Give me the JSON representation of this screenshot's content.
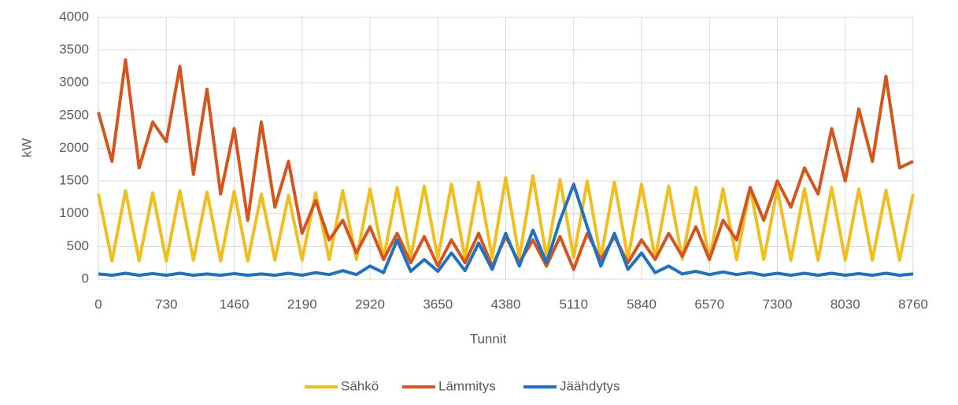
{
  "chart_data": {
    "type": "line",
    "x_label": "Tunnit",
    "y_label": "kW",
    "x": [
      0,
      146,
      292,
      438,
      584,
      730,
      876,
      1022,
      1168,
      1314,
      1460,
      1606,
      1752,
      1898,
      2044,
      2190,
      2336,
      2482,
      2628,
      2774,
      2920,
      3066,
      3212,
      3358,
      3504,
      3650,
      3796,
      3942,
      4088,
      4234,
      4380,
      4526,
      4672,
      4818,
      4964,
      5110,
      5256,
      5402,
      5548,
      5694,
      5840,
      5986,
      6132,
      6278,
      6424,
      6570,
      6716,
      6862,
      7008,
      7154,
      7300,
      7446,
      7592,
      7738,
      7884,
      8030,
      8176,
      8322,
      8468,
      8614,
      8760
    ],
    "series": [
      {
        "name": "Sähkö",
        "color": "#f0bf1d",
        "values": [
          1300,
          280,
          1350,
          280,
          1320,
          280,
          1350,
          290,
          1330,
          280,
          1340,
          280,
          1300,
          290,
          1280,
          290,
          1320,
          300,
          1350,
          300,
          1380,
          310,
          1400,
          320,
          1420,
          320,
          1450,
          320,
          1480,
          330,
          1550,
          330,
          1580,
          330,
          1520,
          330,
          1500,
          320,
          1480,
          320,
          1450,
          320,
          1420,
          310,
          1400,
          300,
          1380,
          300,
          1400,
          300,
          1380,
          290,
          1380,
          290,
          1400,
          290,
          1380,
          290,
          1360,
          290,
          1300
        ]
      },
      {
        "name": "Lämmitys",
        "color": "#d4561e",
        "values": [
          2550,
          1800,
          3350,
          1700,
          2400,
          2100,
          3250,
          1600,
          2900,
          1300,
          2300,
          900,
          2400,
          1100,
          1800,
          700,
          1200,
          600,
          900,
          400,
          800,
          300,
          700,
          250,
          650,
          200,
          600,
          250,
          700,
          200,
          650,
          250,
          600,
          200,
          650,
          150,
          700,
          300,
          650,
          250,
          600,
          300,
          700,
          350,
          800,
          300,
          900,
          600,
          1400,
          900,
          1500,
          1100,
          1700,
          1300,
          2300,
          1500,
          2600,
          1800,
          3100,
          1700,
          1800
        ]
      },
      {
        "name": "Jäähdytys",
        "color": "#1f72c1",
        "values": [
          80,
          60,
          90,
          60,
          85,
          60,
          90,
          60,
          80,
          60,
          85,
          60,
          80,
          60,
          90,
          60,
          100,
          70,
          130,
          70,
          200,
          100,
          600,
          120,
          300,
          120,
          400,
          130,
          550,
          150,
          700,
          200,
          750,
          250,
          900,
          1450,
          800,
          200,
          700,
          150,
          400,
          100,
          200,
          80,
          120,
          70,
          110,
          70,
          100,
          60,
          90,
          60,
          90,
          60,
          90,
          60,
          85,
          60,
          90,
          60,
          80
        ]
      }
    ],
    "xlim": [
      0,
      8760
    ],
    "xticks": [
      0,
      730,
      1460,
      2190,
      2920,
      3650,
      4380,
      5110,
      5840,
      6570,
      7300,
      8030,
      8760
    ],
    "ylim": [
      0,
      4000
    ],
    "yticks": [
      0,
      500,
      1000,
      1500,
      2000,
      2500,
      3000,
      3500,
      4000
    ],
    "grid": true,
    "legend": "bottom"
  }
}
